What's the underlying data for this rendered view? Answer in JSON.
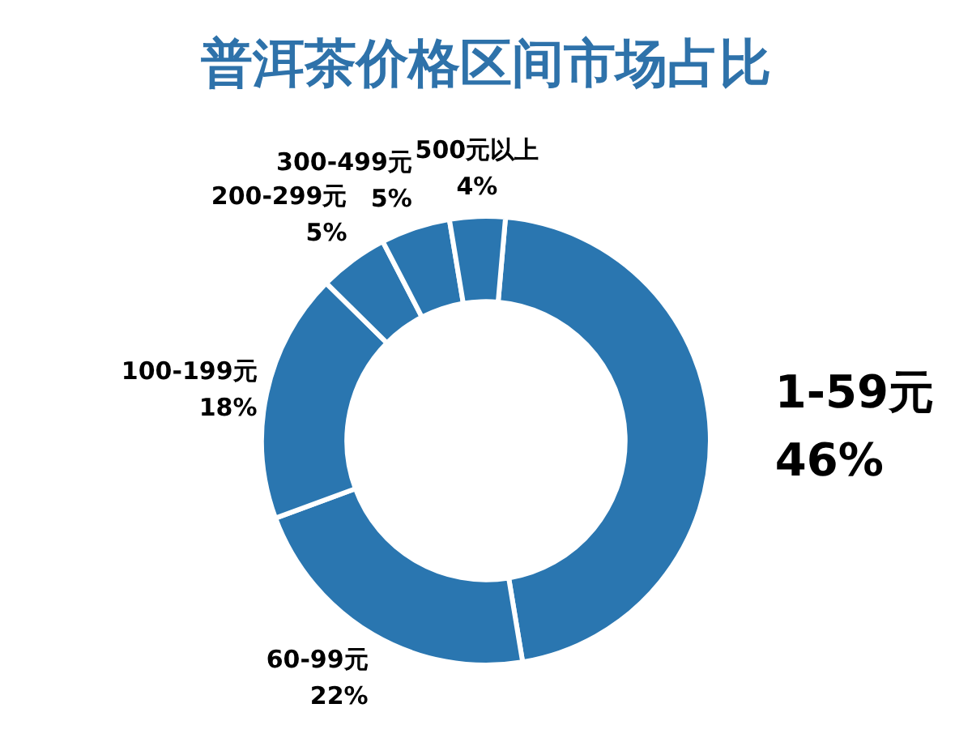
{
  "chart_data": {
    "type": "donut",
    "title": "普洱茶价格区间市场占比",
    "categories": [
      "1-59元",
      "60-99元",
      "100-199元",
      "200-299元",
      "300-499元",
      "500元以上"
    ],
    "values": [
      46,
      22,
      18,
      5,
      5,
      4
    ],
    "value_labels": [
      "46%",
      "22%",
      "18%",
      "5%",
      "5%",
      "4%"
    ],
    "colors": [
      "#2a76b0",
      "#2a76b0",
      "#2a76b0",
      "#2a76b0",
      "#2a76b0",
      "#2a76b0"
    ],
    "legend": false
  }
}
